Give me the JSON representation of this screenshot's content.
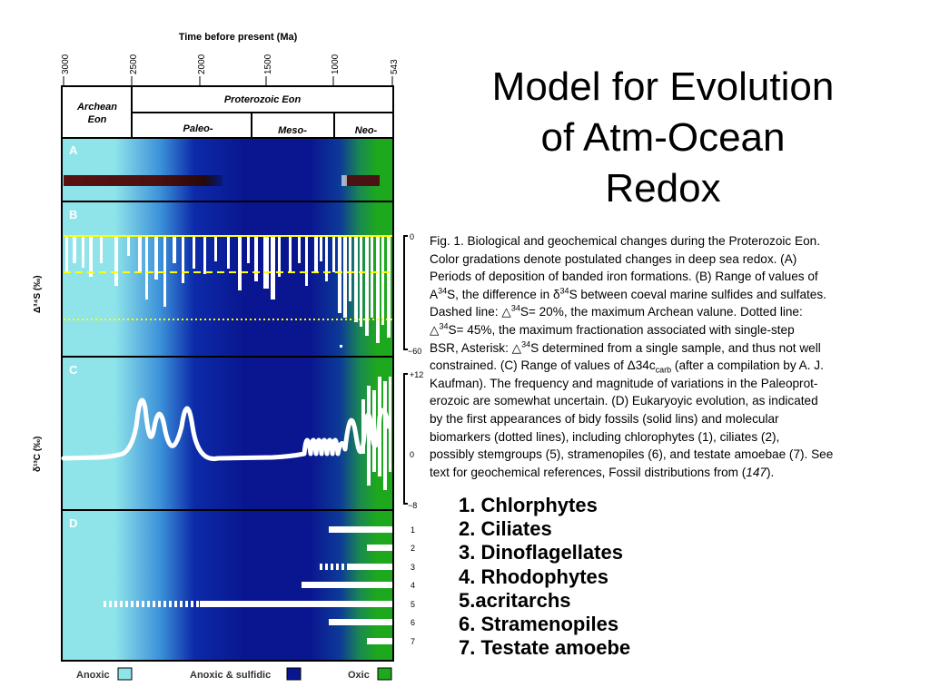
{
  "slide": {
    "title_lines": [
      "Model for Evolution",
      "of Atm-Ocean",
      "Redox"
    ]
  },
  "figure": {
    "axis_title": "Time before present (Ma)",
    "time_ticks": [
      "3000",
      "2500",
      "2000",
      "1500",
      "1000",
      "543"
    ],
    "eons": {
      "archean_line1": "Archean",
      "archean_line2": "Eon",
      "proterozoic": "Proterozoic Eon"
    },
    "eras": {
      "paleo": "Paleo-",
      "meso": "Meso-",
      "neo": "Neo-"
    },
    "panels": {
      "a": {
        "label": "A"
      },
      "b": {
        "label": "B",
        "ylabel": "Δ³⁴S (‰)",
        "scale_top": "0",
        "scale_bottom": "−60"
      },
      "c": {
        "label": "C",
        "ylabel": "δ¹³C (‰)",
        "scale_top": "+12",
        "scale_mid": "0",
        "scale_bottom": "−8"
      },
      "d": {
        "label": "D",
        "rows": [
          "1",
          "2",
          "3",
          "4",
          "5",
          "6",
          "7"
        ]
      }
    },
    "legend": {
      "anoxic": {
        "label": "Anoxic",
        "color": "#8fe4ea"
      },
      "sulfidic": {
        "label": "Anoxic & sulfidic",
        "color": "#0a1690"
      },
      "oxic": {
        "label": "Oxic",
        "color": "#1ea81e"
      }
    }
  },
  "caption": {
    "lines": [
      {
        "segments": [
          {
            "t": "Fig. 1. Biological and geochemical changes during the Proterozoic Eon."
          }
        ]
      },
      {
        "segments": [
          {
            "t": "Color gradations denote postulated changes in deep sea redox. (A)"
          }
        ]
      },
      {
        "segments": [
          {
            "t": "Periods of deposition of banded iron formations. (B) Range of values of"
          }
        ]
      },
      {
        "segments": [
          {
            "t": "A"
          },
          {
            "t": "34",
            "s": "sup"
          },
          {
            "t": "S, the difference in δ"
          },
          {
            "t": "34",
            "s": "sup"
          },
          {
            "t": "S between coeval marine sulfides and sulfates."
          }
        ]
      },
      {
        "segments": [
          {
            "t": "Dashed line: △"
          },
          {
            "t": "34",
            "s": "sup"
          },
          {
            "t": "S= 20%, the maximum Archean valune. Dotted line:"
          }
        ]
      },
      {
        "segments": [
          {
            "t": "△"
          },
          {
            "t": "34",
            "s": "sup"
          },
          {
            "t": "S= 45%, the maximum fractionation associated with single-step"
          }
        ]
      },
      {
        "segments": [
          {
            "t": "BSR, Asterisk: △"
          },
          {
            "t": "34",
            "s": "sup"
          },
          {
            "t": "S determined from a single sample, and thus not well"
          }
        ]
      },
      {
        "segments": [
          {
            "t": "constrained. (C) Range of values of Δ34c"
          },
          {
            "t": "carb",
            "s": "sub"
          },
          {
            "t": " (after a compilation by A. J."
          }
        ]
      },
      {
        "segments": [
          {
            "t": "Kaufman). The frequency and magnitude of variations in the Paleoprot-"
          }
        ]
      },
      {
        "segments": [
          {
            "t": "erozoic are somewhat uncertain. (D) Eukaryoyic evolution, as indicated"
          }
        ]
      },
      {
        "segments": [
          {
            "t": "by the first appearances of bidy fossils (solid lins) and molecular"
          }
        ]
      },
      {
        "segments": [
          {
            "t": "biomarkers (dotted lines), including chlorophytes (1), ciliates (2),"
          }
        ]
      },
      {
        "segments": [
          {
            "t": "possibly stemgroups (5), stramenopiles (6), and testate amoebae (7). See"
          }
        ]
      },
      {
        "segments": [
          {
            "t": "text for geochemical references, Fossil distributions from ("
          },
          {
            "t": "147",
            "s": "i"
          },
          {
            "t": ")."
          }
        ]
      }
    ]
  },
  "organisms": [
    "1. Chlorphytes",
    "2. Ciliates",
    "3. Dinoflagellates",
    "4. Rhodophytes",
    "5.acritarchs",
    "6. Stramenopiles",
    "7. Testate amoebe"
  ]
}
